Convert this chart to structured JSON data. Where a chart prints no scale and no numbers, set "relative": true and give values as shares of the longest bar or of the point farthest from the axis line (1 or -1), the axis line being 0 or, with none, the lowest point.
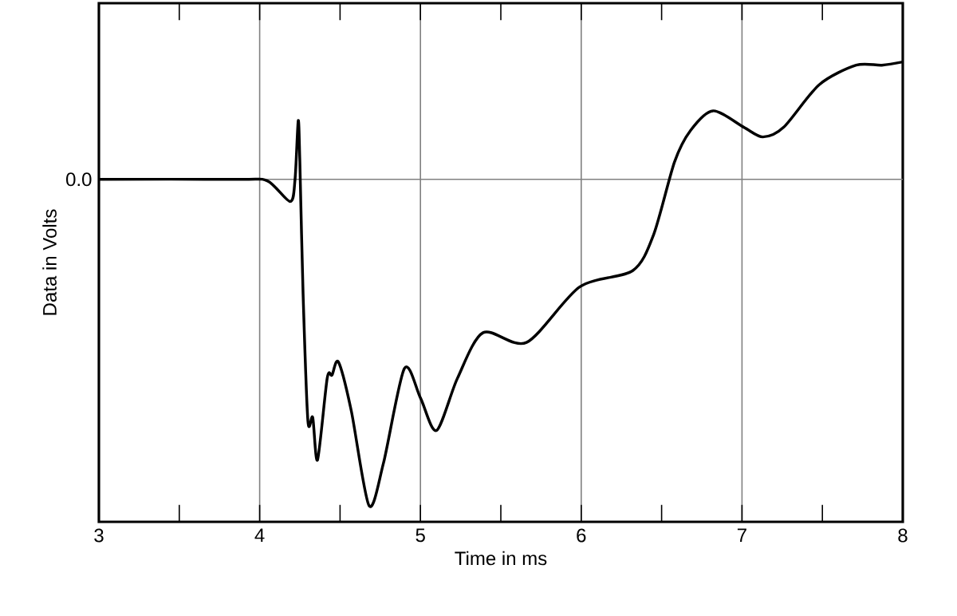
{
  "chart_data": {
    "type": "line",
    "xlabel": "Time in ms",
    "ylabel": "Data in Volts",
    "relative": true,
    "xlim": [
      3,
      8
    ],
    "xticks": [
      3,
      4,
      5,
      6,
      7,
      8
    ],
    "grid": "x",
    "line_style": "solid",
    "marker": "none",
    "ref_lines": [
      {
        "axis": "y",
        "value": 0,
        "label": "0.0",
        "color": "#808080"
      }
    ],
    "series": [
      {
        "color": "#000000",
        "x": [
          3.0,
          3.87,
          4.05,
          4.19,
          4.22,
          4.24,
          4.25,
          4.27,
          4.3,
          4.33,
          4.36,
          4.42,
          4.45,
          4.49,
          4.57,
          4.68,
          4.77,
          4.9,
          5.0,
          5.1,
          5.23,
          5.39,
          5.66,
          5.99,
          6.32,
          6.45,
          6.58,
          6.68,
          6.82,
          7.01,
          7.13,
          7.26,
          7.48,
          7.71,
          7.87,
          8.0
        ],
        "values": [
          0,
          0,
          -0.005,
          -0.068,
          0,
          0.18,
          0.053,
          -0.35,
          -0.74,
          -0.73,
          -0.86,
          -0.61,
          -0.6,
          -0.56,
          -0.71,
          -1,
          -0.87,
          -0.58,
          -0.67,
          -0.77,
          -0.61,
          -0.47,
          -0.5,
          -0.33,
          -0.28,
          -0.17,
          0.053,
          0.15,
          0.21,
          0.16,
          0.13,
          0.16,
          0.29,
          0.35,
          0.35,
          0.36
        ]
      }
    ]
  }
}
